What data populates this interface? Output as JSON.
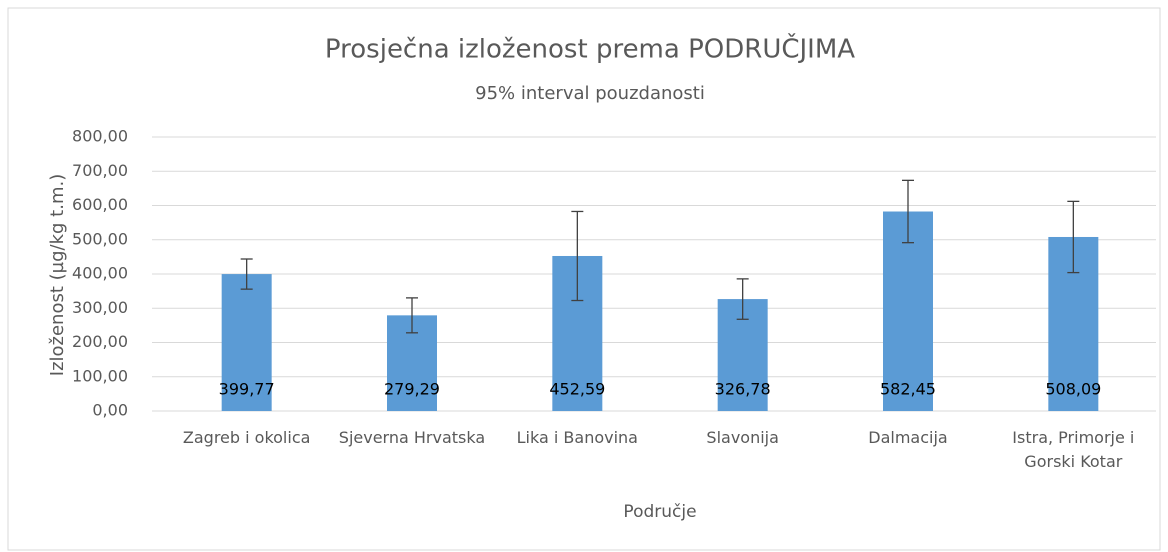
{
  "chart_data": {
    "type": "bar",
    "title": "Prosječna izloženost prema PODRUČJIMA",
    "subtitle": "95% interval pouzdanosti",
    "x_label": "Područje",
    "y_label": "Izloženost (µg/kg t.m.)",
    "categories": [
      "Zagreb i okolica",
      "Sjeverna Hrvatska",
      "Lika i Banovina",
      "Slavonija",
      "Dalmacija",
      "Istra, Primorje i Gorski Kotar"
    ],
    "values": [
      399.77,
      279.29,
      452.59,
      326.78,
      582.45,
      508.09
    ],
    "value_labels": [
      "399,77",
      "279,29",
      "452,59",
      "326,78",
      "582,45",
      "508,09"
    ],
    "errors": [
      44,
      51,
      130,
      59,
      91,
      104
    ],
    "color": "#5b9bd5",
    "ylim": [
      0,
      800
    ],
    "yticks": [
      {
        "value": 0,
        "label": "0,00"
      },
      {
        "value": 100,
        "label": "100,00"
      },
      {
        "value": 200,
        "label": "200,00"
      },
      {
        "value": 300,
        "label": "300,00"
      },
      {
        "value": 400,
        "label": "400,00"
      },
      {
        "value": 500,
        "label": "500,00"
      },
      {
        "value": 600,
        "label": "600,00"
      },
      {
        "value": 700,
        "label": "700,00"
      },
      {
        "value": 800,
        "label": "800,00"
      }
    ],
    "grid": true
  }
}
